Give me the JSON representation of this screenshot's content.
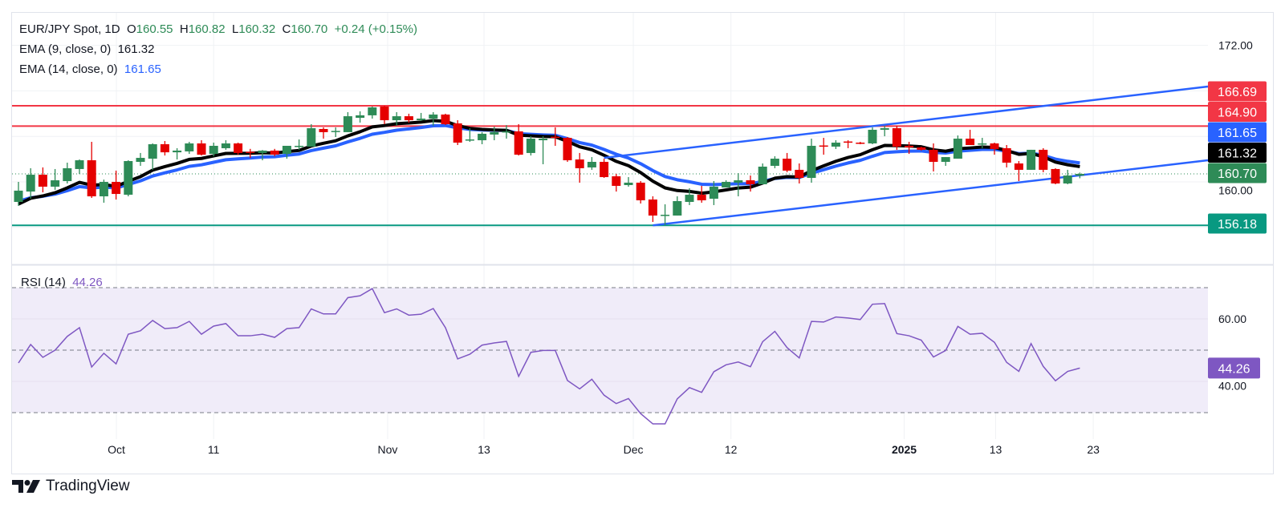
{
  "header": {
    "symbol": "EUR/JPY Spot, 1D",
    "o_label": "O",
    "o_value": "160.55",
    "h_label": "H",
    "h_value": "160.82",
    "l_label": "L",
    "l_value": "160.32",
    "c_label": "C",
    "c_value": "160.70",
    "change": "+0.24 (+0.15%)",
    "ema9_label": "EMA (9, close, 0)",
    "ema9_value": "161.32",
    "ema14_label": "EMA (14, close, 0)",
    "ema14_value": "161.65",
    "rsi_label": "RSI (14)",
    "rsi_value": "44.26"
  },
  "colors": {
    "up": "#2e8b57",
    "down": "#e50000",
    "ema9": "#000000",
    "ema14": "#2962ff",
    "resistance": "#f23645",
    "support": "#089981",
    "rsi": "#7e57c2",
    "channel": "#2962ff"
  },
  "branding": {
    "logo_text": "TradingView"
  },
  "chart_data": [
    {
      "type": "candlestick",
      "title": "EUR/JPY Spot, 1D",
      "ylim": [
        153.5,
        172.9
      ],
      "y_ticks": [
        "172.00",
        "160.00"
      ],
      "y_tick_values": [
        172,
        160
      ],
      "grid_values": [
        172,
        168,
        164,
        160,
        156
      ],
      "x_ticks": [
        {
          "label": "Oct",
          "bar": 8.03
        },
        {
          "label": "11",
          "bar": 16.0
        },
        {
          "label": "Nov",
          "bar": 30.26
        },
        {
          "label": "13",
          "bar": 38.16
        },
        {
          "label": "Dec",
          "bar": 50.4
        },
        {
          "label": "12",
          "bar": 58.4
        },
        {
          "label": "2025",
          "bar": 72.6,
          "bold": true
        },
        {
          "label": "13",
          "bar": 80.1
        },
        {
          "label": "23",
          "bar": 88.1
        }
      ],
      "ohlc": [
        [
          158.24,
          160.0,
          157.89,
          159.23
        ],
        [
          159.15,
          161.2,
          158.52,
          160.63
        ],
        [
          160.63,
          161.27,
          159.08,
          159.58
        ],
        [
          159.58,
          161.13,
          159.3,
          160.14
        ],
        [
          160.07,
          161.69,
          159.86,
          161.2
        ],
        [
          161.13,
          161.97,
          160.7,
          161.9
        ],
        [
          161.9,
          163.52,
          158.59,
          158.73
        ],
        [
          158.73,
          160.2,
          158.17,
          160.0
        ],
        [
          160.0,
          160.99,
          158.45,
          158.94
        ],
        [
          158.87,
          161.9,
          158.73,
          161.83
        ],
        [
          161.76,
          162.54,
          161.41,
          162.11
        ],
        [
          162.04,
          163.38,
          161.06,
          163.31
        ],
        [
          163.31,
          163.59,
          162.32,
          162.6
        ],
        [
          162.6,
          162.96,
          161.97,
          162.75
        ],
        [
          162.68,
          163.52,
          162.46,
          163.38
        ],
        [
          163.38,
          163.66,
          162.32,
          162.39
        ],
        [
          162.46,
          163.45,
          162.25,
          163.17
        ],
        [
          162.96,
          163.66,
          162.82,
          163.38
        ],
        [
          163.38,
          163.45,
          162.39,
          162.54
        ],
        [
          162.65,
          162.9,
          162.1,
          162.55
        ],
        [
          162.54,
          162.8,
          161.9,
          162.75
        ],
        [
          162.75,
          162.9,
          162.25,
          162.4
        ],
        [
          162.46,
          163.17,
          162.04,
          163.17
        ],
        [
          163.1,
          163.73,
          162.82,
          163.17
        ],
        [
          163.1,
          165.07,
          163.1,
          164.72
        ],
        [
          164.65,
          164.79,
          163.8,
          164.37
        ],
        [
          164.4,
          164.79,
          163.94,
          164.48
        ],
        [
          164.37,
          166.13,
          164.37,
          165.77
        ],
        [
          165.63,
          166.2,
          165.21,
          165.85
        ],
        [
          165.85,
          166.62,
          165.56,
          166.55
        ],
        [
          166.62,
          166.69,
          165.07,
          165.42
        ],
        [
          165.42,
          166.13,
          164.93,
          165.77
        ],
        [
          165.77,
          165.99,
          165.2,
          165.42
        ],
        [
          165.42,
          166.06,
          165.35,
          165.56
        ],
        [
          165.56,
          166.13,
          164.93,
          165.92
        ],
        [
          165.92,
          165.99,
          165.0,
          165.07
        ],
        [
          165.14,
          165.42,
          163.24,
          163.45
        ],
        [
          163.66,
          164.72,
          163.52,
          163.73
        ],
        [
          163.66,
          164.37,
          163.31,
          164.23
        ],
        [
          164.16,
          164.86,
          163.66,
          164.37
        ],
        [
          164.37,
          164.99,
          163.8,
          164.44
        ],
        [
          164.44,
          165.07,
          162.32,
          162.39
        ],
        [
          162.54,
          164.01,
          162.32,
          163.8
        ],
        [
          163.66,
          164.01,
          161.55,
          163.8
        ],
        [
          163.97,
          164.79,
          163.17,
          163.87
        ],
        [
          163.87,
          163.94,
          161.76,
          161.9
        ],
        [
          161.97,
          162.54,
          159.93,
          161.2
        ],
        [
          161.27,
          162.18,
          161.06,
          161.76
        ],
        [
          161.76,
          162.04,
          160.35,
          160.42
        ],
        [
          160.49,
          160.7,
          159.15,
          159.65
        ],
        [
          159.72,
          160.42,
          159.58,
          159.93
        ],
        [
          159.93,
          160.07,
          158.1,
          158.38
        ],
        [
          158.45,
          158.73,
          156.48,
          157.04
        ],
        [
          157.04,
          158.03,
          156.18,
          157.11
        ],
        [
          157.04,
          158.73,
          157.04,
          158.31
        ],
        [
          158.24,
          159.44,
          157.96,
          158.87
        ],
        [
          158.87,
          159.65,
          158.17,
          158.38
        ],
        [
          158.52,
          160.07,
          157.96,
          159.58
        ],
        [
          159.51,
          160.14,
          159.51,
          160.0
        ],
        [
          159.93,
          160.77,
          158.73,
          160.14
        ],
        [
          160.14,
          160.56,
          159.15,
          159.79
        ],
        [
          159.79,
          161.62,
          159.79,
          161.34
        ],
        [
          161.41,
          162.25,
          161.2,
          162.04
        ],
        [
          162.04,
          162.54,
          160.85,
          160.99
        ],
        [
          161.06,
          161.62,
          159.86,
          160.35
        ],
        [
          160.35,
          163.8,
          159.93,
          163.17
        ],
        [
          163.2,
          163.87,
          162.39,
          163.1
        ],
        [
          163.1,
          163.66,
          162.89,
          163.45
        ],
        [
          163.55,
          163.66,
          162.96,
          163.45
        ],
        [
          163.45,
          163.52,
          163.31,
          163.38
        ],
        [
          163.38,
          164.79,
          163.31,
          164.58
        ],
        [
          164.58,
          164.93,
          164.01,
          164.72
        ],
        [
          164.72,
          164.93,
          162.82,
          163.1
        ],
        [
          163.17,
          163.52,
          162.46,
          163.03
        ],
        [
          163.03,
          163.1,
          162.75,
          162.82
        ],
        [
          162.82,
          163.38,
          160.92,
          161.76
        ],
        [
          161.76,
          162.18,
          161.41,
          162.18
        ],
        [
          162.04,
          164.08,
          162.04,
          163.8
        ],
        [
          163.8,
          164.58,
          163.24,
          163.24
        ],
        [
          163.31,
          163.87,
          162.96,
          163.38
        ],
        [
          163.38,
          163.45,
          162.39,
          162.89
        ],
        [
          162.96,
          163.24,
          161.27,
          161.69
        ],
        [
          161.62,
          161.83,
          160.07,
          161.06
        ],
        [
          161.06,
          162.82,
          161.06,
          162.82
        ],
        [
          162.82,
          162.96,
          160.85,
          161.06
        ],
        [
          161.13,
          161.2,
          159.79,
          159.86
        ],
        [
          159.86,
          161.06,
          159.79,
          160.56
        ],
        [
          160.55,
          160.82,
          160.32,
          160.7
        ]
      ],
      "horizontal_lines": [
        {
          "value": 166.69,
          "label": "166.69",
          "kind": "resistance"
        },
        {
          "value": 164.9,
          "label": "164.90",
          "kind": "resistance"
        },
        {
          "value": 156.18,
          "label": "156.18",
          "kind": "support"
        }
      ],
      "channel": {
        "upper": {
          "from": {
            "bar": 48.0,
            "price": 162.11
          },
          "to": {
            "bar": 97.5,
            "price": 168.38
          }
        },
        "lower": {
          "from": {
            "bar": 52.0,
            "price": 156.18
          },
          "to": {
            "bar": 97.5,
            "price": 161.9
          }
        }
      },
      "price_labels": [
        {
          "text": "166.69",
          "kind": "resistance"
        },
        {
          "text": "164.90",
          "kind": "resistance"
        },
        {
          "text": "161.65",
          "kind": "ema14"
        },
        {
          "text": "161.32",
          "kind": "ema9"
        },
        {
          "text": "160.70",
          "kind": "last"
        },
        {
          "text": "156.18",
          "kind": "support"
        }
      ],
      "last_price": 160.7,
      "ema_periods": [
        9,
        14
      ]
    },
    {
      "type": "line",
      "title": "RSI (14)",
      "ylim": [
        19,
        77
      ],
      "y_ticks": [
        "60.00",
        "40.00"
      ],
      "y_tick_values": [
        60,
        40
      ],
      "bands": [
        70,
        50,
        30
      ],
      "values": [
        45.9,
        51.8,
        47.7,
        50,
        54.4,
        57.2,
        44.6,
        49,
        45.6,
        55.1,
        56.2,
        59.5,
        56.9,
        57.2,
        59.2,
        55.1,
        57.7,
        58.5,
        54.6,
        54.6,
        55.1,
        54.1,
        56.9,
        57.2,
        63.2,
        61.6,
        61.6,
        66.8,
        67.4,
        69.7,
        62.0,
        63.2,
        61.2,
        61.5,
        63.3,
        57.2,
        47.2,
        48.7,
        51.6,
        52.3,
        52.8,
        41.6,
        49.3,
        49.9,
        49.9,
        40.3,
        37.6,
        40.7,
        35.6,
        32.9,
        34.5,
        29.7,
        26.4,
        26.4,
        34.4,
        38.0,
        36.5,
        43.1,
        45.3,
        46.2,
        44.7,
        52.7,
        56.0,
        50.8,
        47.5,
        59.2,
        59.0,
        60.6,
        60.3,
        59.8,
        64.7,
        64.9,
        55.3,
        54.6,
        53.2,
        47.8,
        49.9,
        57.6,
        55.1,
        55.4,
        52.5,
        46.1,
        43.2,
        52.1,
        44.8,
        40.2,
        43.2,
        44.26
      ],
      "last_label": "44.26"
    }
  ]
}
